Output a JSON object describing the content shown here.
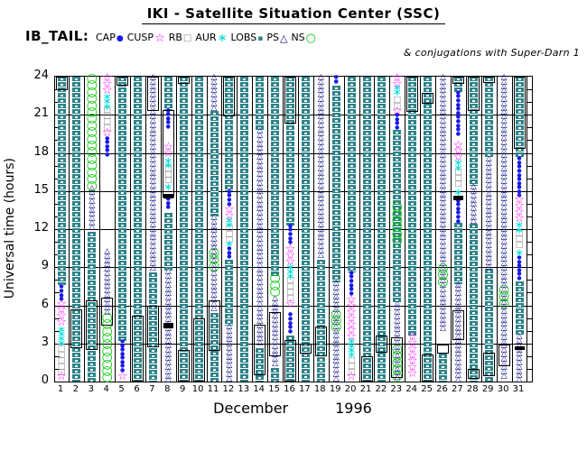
{
  "title": "IKI - Satellite Situation Center (SSC)",
  "ibtail_label": "IB_TAIL:",
  "annotation": "& conjugations with Super-Darn 1",
  "chart_data": {
    "type": "scatter",
    "title": "IKI - Satellite Situation Center (SSC)",
    "ylabel": "Universal time (hours)",
    "xlabel_month": "December",
    "xlabel_year": "1996",
    "ylim": [
      0,
      24
    ],
    "yticks": [
      0,
      3,
      6,
      9,
      12,
      15,
      18,
      21,
      24
    ],
    "minor_tick_hours": 1,
    "grid": "on",
    "days": [
      1,
      2,
      3,
      4,
      5,
      6,
      7,
      8,
      9,
      10,
      11,
      12,
      13,
      14,
      15,
      16,
      17,
      18,
      19,
      20,
      21,
      22,
      23,
      24,
      25,
      26,
      27,
      28,
      29,
      30,
      31
    ],
    "series": [
      {
        "key": "CAP",
        "label": "CAP",
        "color": "#1a1ae6",
        "marker": "dot"
      },
      {
        "key": "CUSP",
        "label": "CUSP",
        "color": "#ff00ff",
        "marker": "star-open"
      },
      {
        "key": "RB",
        "label": "RB",
        "color": "#8c8c8c",
        "marker": "square-open"
      },
      {
        "key": "AUR",
        "label": "AUR",
        "color": "#00dddd",
        "marker": "asterisk"
      },
      {
        "key": "LOBS",
        "label": "LOBS",
        "color": "#2e8389",
        "marker": "square-fill"
      },
      {
        "key": "PS",
        "label": "PS",
        "color": "#00007d",
        "marker": "triangle-open"
      },
      {
        "key": "NS",
        "label": "NS",
        "color": "#00c800",
        "marker": "circle-open"
      }
    ],
    "conjugation_marker": {
      "key": "CONJ",
      "style": "black outline rectangle",
      "meaning": "conjugations with Super-Darn 1"
    },
    "segments": [
      [
        1,
        "CONJ",
        24,
        22.9
      ],
      [
        1,
        "LOBS",
        24,
        7.6
      ],
      [
        1,
        "CAP",
        7.5,
        6.1
      ],
      [
        1,
        "CUSP",
        6.2,
        4.2
      ],
      [
        1,
        "AUR",
        4.2,
        2.7
      ],
      [
        1,
        "RB",
        2.7,
        0.5
      ],
      [
        1,
        "CUSP",
        0.5,
        0
      ],
      [
        2,
        "LOBS",
        24,
        0
      ],
      [
        2,
        "CONJ",
        5.7,
        2.6
      ],
      [
        3,
        "NS",
        24,
        15.3
      ],
      [
        3,
        "PS",
        15.3,
        11.8
      ],
      [
        3,
        "LOBS",
        11.8,
        0
      ],
      [
        3,
        "CONJ",
        6.4,
        2.5
      ],
      [
        4,
        "CUSP",
        24,
        22.5
      ],
      [
        4,
        "AUR",
        22.5,
        21.5
      ],
      [
        4,
        "RB",
        21.5,
        19.7
      ],
      [
        4,
        "CUSP",
        19.7,
        19.2
      ],
      [
        4,
        "CAP",
        19.2,
        17.7
      ],
      [
        4,
        "PS",
        10.3,
        5.2
      ],
      [
        4,
        "CONJ",
        6.6,
        4.4
      ],
      [
        4,
        "NS",
        5.2,
        0
      ],
      [
        5,
        "CONJ",
        24,
        23.3
      ],
      [
        5,
        "LOBS",
        24,
        3.2
      ],
      [
        5,
        "CAP",
        3.2,
        0.5
      ],
      [
        5,
        "CUSP",
        0.5,
        0
      ],
      [
        6,
        "LOBS",
        24,
        0
      ],
      [
        6,
        "CONJ",
        5.2,
        0
      ],
      [
        7,
        "PS",
        24,
        8.6
      ],
      [
        7,
        "CONJ",
        24,
        21.3
      ],
      [
        7,
        "CONJ",
        6.0,
        2.7
      ],
      [
        7,
        "LOBS",
        8.6,
        0
      ],
      [
        8,
        "LOBS",
        24,
        21.4
      ],
      [
        8,
        "CAP",
        21.4,
        19.7
      ],
      [
        8,
        "CUSP",
        18.5,
        17.5
      ],
      [
        8,
        "AUR",
        17.5,
        16.9
      ],
      [
        8,
        "RB",
        16.9,
        15.4
      ],
      [
        8,
        "AUR",
        15.4,
        15.0
      ],
      [
        8,
        "CONJ",
        21.4,
        14.5
      ],
      [
        8,
        "BAR",
        14.8,
        14.4
      ],
      [
        8,
        "CAP",
        14.4,
        13.3
      ],
      [
        8,
        "LOBS",
        13.3,
        8.7
      ],
      [
        8,
        "PS",
        8.7,
        0
      ],
      [
        8,
        "BAR",
        4.6,
        4.2
      ],
      [
        9,
        "CONJ",
        24,
        23.4
      ],
      [
        9,
        "LOBS",
        24,
        0
      ],
      [
        9,
        "CONJ",
        2.5,
        0
      ],
      [
        10,
        "LOBS",
        24,
        0
      ],
      [
        10,
        "CONJ",
        5.0,
        0
      ],
      [
        11,
        "PS",
        24,
        21.3
      ],
      [
        11,
        "LOBS",
        21.3,
        13.0
      ],
      [
        11,
        "PS",
        13.0,
        5.4
      ],
      [
        11,
        "NS",
        10.3,
        8.5
      ],
      [
        11,
        "CONJ",
        6.4,
        2.4
      ],
      [
        11,
        "LOBS",
        5.4,
        0
      ],
      [
        12,
        "CONJ",
        24,
        20.9
      ],
      [
        12,
        "LOBS",
        24,
        15.0
      ],
      [
        12,
        "CAP",
        15.0,
        13.6
      ],
      [
        12,
        "CUSP",
        13.6,
        12.8
      ],
      [
        12,
        "AUR",
        12.8,
        12.2
      ],
      [
        12,
        "RB",
        12.2,
        10.9
      ],
      [
        12,
        "AUR",
        10.9,
        10.5
      ],
      [
        12,
        "CAP",
        10.5,
        9.6
      ],
      [
        12,
        "LOBS",
        9.6,
        4.4
      ],
      [
        12,
        "PS",
        4.4,
        0
      ],
      [
        13,
        "LOBS",
        24,
        0
      ],
      [
        14,
        "LOBS",
        24,
        19.8
      ],
      [
        14,
        "PS",
        19.8,
        2.6
      ],
      [
        14,
        "CONJ",
        4.5,
        0.5
      ],
      [
        14,
        "LOBS",
        2.6,
        0
      ],
      [
        15,
        "LOBS",
        24,
        8.3
      ],
      [
        15,
        "NS",
        8.3,
        6.7
      ],
      [
        15,
        "PS",
        6.6,
        1.1
      ],
      [
        15,
        "CONJ",
        5.5,
        2.0
      ],
      [
        15,
        "LOBS",
        1.1,
        0
      ],
      [
        16,
        "CONJ",
        24,
        20.3
      ],
      [
        16,
        "LOBS",
        24,
        12.3
      ],
      [
        16,
        "CAP",
        12.3,
        10.6
      ],
      [
        16,
        "CUSP",
        10.5,
        9.1
      ],
      [
        16,
        "AUR",
        9.1,
        8.1
      ],
      [
        16,
        "RB",
        8.1,
        6.2
      ],
      [
        16,
        "CUSP",
        6.2,
        5.5
      ],
      [
        16,
        "CAP",
        5.3,
        3.8
      ],
      [
        16,
        "LOBS",
        3.6,
        0
      ],
      [
        16,
        "CONJ",
        3.3,
        0
      ],
      [
        17,
        "LOBS",
        24,
        0
      ],
      [
        17,
        "CONJ",
        3.0,
        2.2
      ],
      [
        18,
        "PS",
        24,
        9.6
      ],
      [
        18,
        "LOBS",
        9.6,
        0
      ],
      [
        18,
        "CONJ",
        4.3,
        2.0
      ],
      [
        19,
        "CAP",
        24,
        23.3
      ],
      [
        19,
        "LOBS",
        23.3,
        7.8
      ],
      [
        19,
        "PS",
        7.8,
        0
      ],
      [
        19,
        "NS",
        5.5,
        4.0
      ],
      [
        20,
        "LOBS",
        24,
        8.6
      ],
      [
        20,
        "CAP",
        8.6,
        6.5
      ],
      [
        20,
        "CUSP",
        6.5,
        3.3
      ],
      [
        20,
        "AUR",
        3.3,
        1.8
      ],
      [
        20,
        "RB",
        1.8,
        0.3
      ],
      [
        20,
        "CUSP",
        0.5,
        0
      ],
      [
        21,
        "LOBS",
        24,
        0
      ],
      [
        21,
        "CONJ",
        2.0,
        0
      ],
      [
        22,
        "LOBS",
        24,
        0
      ],
      [
        22,
        "CONJ",
        3.6,
        2.3
      ],
      [
        23,
        "CUSP",
        24,
        23.2
      ],
      [
        23,
        "AUR",
        23.2,
        22.3
      ],
      [
        23,
        "RB",
        22.3,
        21.4
      ],
      [
        23,
        "CUSP",
        21.4,
        21.0
      ],
      [
        23,
        "CAP",
        21.0,
        19.8
      ],
      [
        23,
        "LOBS",
        19.8,
        6.2
      ],
      [
        23,
        "NS",
        13.9,
        10.7
      ],
      [
        23,
        "PS",
        6.2,
        0
      ],
      [
        23,
        "CONJ",
        3.5,
        0.3
      ],
      [
        23,
        "NS",
        2.7,
        0
      ],
      [
        24,
        "CONJ",
        24,
        21.2
      ],
      [
        24,
        "LOBS",
        24,
        3.6
      ],
      [
        24,
        "CUSP",
        3.6,
        0
      ],
      [
        25,
        "LOBS",
        24,
        0
      ],
      [
        25,
        "CONJ",
        22.7,
        21.9
      ],
      [
        25,
        "CONJ",
        2.1,
        0
      ],
      [
        26,
        "PS",
        24,
        4.0
      ],
      [
        26,
        "NS",
        9.1,
        7.6
      ],
      [
        26,
        "CONJ",
        2.9,
        2.2
      ],
      [
        26,
        "LOBS",
        2.2,
        0
      ],
      [
        27,
        "CONJ",
        24,
        23.4
      ],
      [
        27,
        "LOBS",
        24,
        22.8
      ],
      [
        27,
        "CAP",
        22.8,
        19.3
      ],
      [
        27,
        "CUSP",
        18.7,
        17.3
      ],
      [
        27,
        "AUR",
        17.3,
        16.6
      ],
      [
        27,
        "RB",
        16.6,
        15.0
      ],
      [
        27,
        "AUR",
        15.0,
        14.6
      ],
      [
        27,
        "BAR",
        14.6,
        14.3
      ],
      [
        27,
        "CAP",
        14.3,
        12.5
      ],
      [
        27,
        "LOBS",
        12.5,
        7.7
      ],
      [
        27,
        "PS",
        7.7,
        0
      ],
      [
        27,
        "CONJ",
        5.6,
        3.3
      ],
      [
        28,
        "CONJ",
        24,
        21.3
      ],
      [
        28,
        "LOBS",
        24,
        15.4
      ],
      [
        28,
        "PS",
        15.4,
        12.4
      ],
      [
        28,
        "LOBS",
        12.4,
        0
      ],
      [
        28,
        "CONJ",
        1.0,
        0.2
      ],
      [
        29,
        "CONJ",
        24,
        23.5
      ],
      [
        29,
        "LOBS",
        24,
        17.6
      ],
      [
        29,
        "PS",
        17.6,
        8.9
      ],
      [
        29,
        "LOBS",
        8.9,
        0
      ],
      [
        29,
        "CONJ",
        2.3,
        0.4
      ],
      [
        30,
        "PS",
        24,
        0
      ],
      [
        30,
        "NS",
        7.4,
        5.9
      ],
      [
        30,
        "CONJ",
        2.9,
        1.2
      ],
      [
        31,
        "CONJ",
        24,
        18.3
      ],
      [
        31,
        "LOBS",
        24,
        17.6
      ],
      [
        31,
        "CAP",
        17.6,
        14.4
      ],
      [
        31,
        "CUSP",
        14.4,
        12.4
      ],
      [
        31,
        "AUR",
        12.4,
        11.8
      ],
      [
        31,
        "RB",
        11.8,
        10.2
      ],
      [
        31,
        "AUR",
        10.2,
        9.8
      ],
      [
        31,
        "CAP",
        9.8,
        7.9
      ],
      [
        31,
        "LOBS",
        7.9,
        3.6
      ],
      [
        31,
        "PS",
        3.6,
        0
      ],
      [
        31,
        "BAR",
        2.8,
        2.5
      ]
    ]
  }
}
